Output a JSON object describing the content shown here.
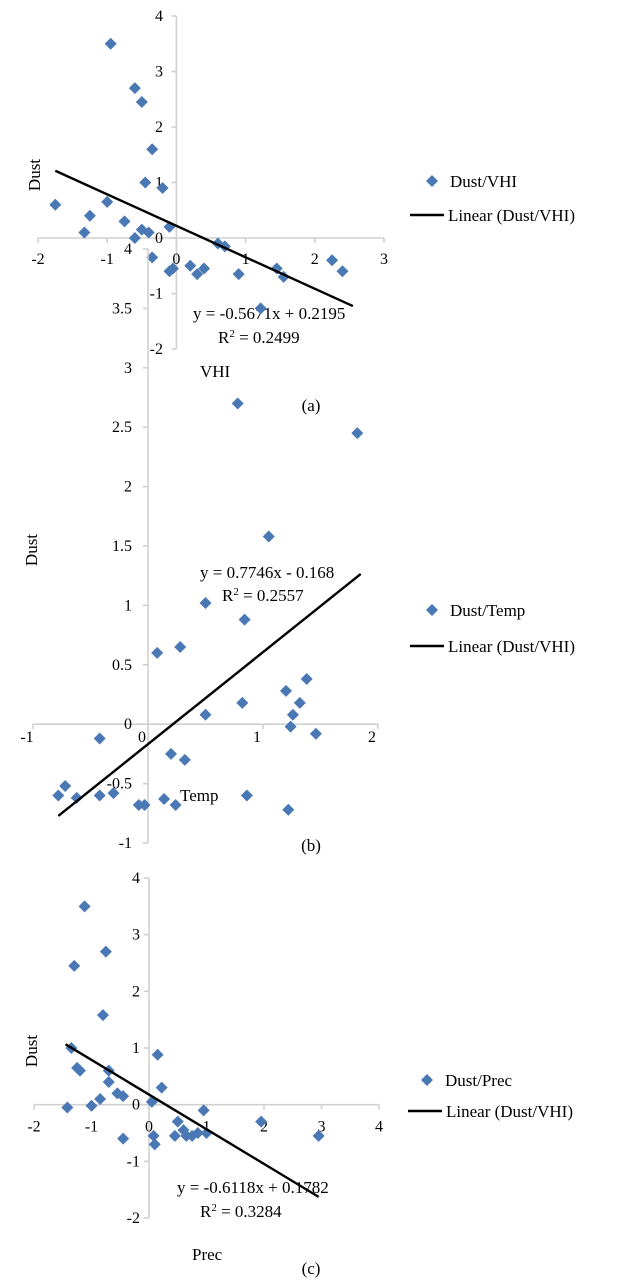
{
  "chart_data": [
    {
      "type": "scatter",
      "panel_label": "(a)",
      "xlabel": "VHI",
      "ylabel": "Dust",
      "xlim": [
        -2,
        3
      ],
      "ylim": [
        -2,
        4
      ],
      "x_ticks": [
        -2,
        -1,
        0,
        1,
        2,
        3
      ],
      "y_ticks": [
        -2,
        -1,
        0,
        1,
        2,
        3,
        4
      ],
      "x_tick_labels": [
        "-2",
        "-1",
        "0",
        "1",
        "2",
        "3"
      ],
      "y_tick_labels": [
        "-2",
        "-1",
        "0",
        "1",
        "2",
        "3",
        "4"
      ],
      "series": [
        {
          "name": "Dust/VHI",
          "points": [
            [
              -1.75,
              0.6
            ],
            [
              -1.33,
              0.1
            ],
            [
              -1.25,
              0.4
            ],
            [
              -1.0,
              0.65
            ],
            [
              -0.95,
              3.5
            ],
            [
              -0.75,
              0.3
            ],
            [
              -0.6,
              0.0
            ],
            [
              -0.6,
              2.7
            ],
            [
              -0.5,
              2.45
            ],
            [
              -0.5,
              0.15
            ],
            [
              -0.45,
              1.0
            ],
            [
              -0.4,
              0.1
            ],
            [
              -0.35,
              1.6
            ],
            [
              -0.35,
              -0.35
            ],
            [
              -0.2,
              0.9
            ],
            [
              -0.1,
              0.2
            ],
            [
              -0.1,
              -0.6
            ],
            [
              -0.05,
              -0.55
            ],
            [
              0.2,
              -0.5
            ],
            [
              0.3,
              -0.65
            ],
            [
              0.4,
              -0.55
            ],
            [
              0.9,
              -0.65
            ],
            [
              0.6,
              -0.1
            ],
            [
              0.7,
              -0.15
            ],
            [
              1.45,
              -0.55
            ],
            [
              1.55,
              -0.7
            ],
            [
              2.25,
              -0.4
            ],
            [
              2.4,
              -0.6
            ]
          ]
        }
      ],
      "trendline": {
        "name": "Linear (Dust/VHI)",
        "slope": -0.5671,
        "intercept": 0.2195,
        "x_range": [
          -1.75,
          2.55
        ]
      },
      "annotations": {
        "equation": "y = -0.5671x + 0.2195",
        "r2_prefix": "R",
        "r2_suffix": " = 0.2499"
      },
      "legend": {
        "position": "right",
        "marker_label": "Dust/VHI",
        "line_label": "Linear (Dust/VHI)"
      }
    },
    {
      "type": "scatter",
      "panel_label": "(b)",
      "xlabel": "Temp",
      "ylabel": "Dust",
      "xlim": [
        -1,
        2
      ],
      "ylim": [
        -1,
        4
      ],
      "x_ticks": [
        -1,
        0,
        1,
        2
      ],
      "y_ticks": [
        -1,
        -0.5,
        0,
        0.5,
        1,
        1.5,
        2,
        2.5,
        3,
        3.5,
        4
      ],
      "x_tick_labels": [
        "-1",
        "0",
        "1",
        "2"
      ],
      "y_tick_labels": [
        "-1",
        "-0.5",
        "0",
        "0.5",
        "1",
        "1.5",
        "2",
        "2.5",
        "3",
        "3.5",
        "4"
      ],
      "series": [
        {
          "name": "Dust/Temp",
          "points": [
            [
              -0.78,
              -0.6
            ],
            [
              -0.72,
              -0.52
            ],
            [
              -0.62,
              -0.62
            ],
            [
              -0.42,
              -0.12
            ],
            [
              -0.42,
              -0.6
            ],
            [
              -0.3,
              -0.58
            ],
            [
              -0.08,
              -0.68
            ],
            [
              -0.03,
              -0.68
            ],
            [
              0.08,
              0.6
            ],
            [
              0.14,
              -0.63
            ],
            [
              0.2,
              -0.25
            ],
            [
              0.24,
              -0.68
            ],
            [
              0.28,
              0.65
            ],
            [
              0.32,
              -0.3
            ],
            [
              0.5,
              1.02
            ],
            [
              0.5,
              0.08
            ],
            [
              0.78,
              2.7
            ],
            [
              0.82,
              0.18
            ],
            [
              0.84,
              0.88
            ],
            [
              0.86,
              -0.6
            ],
            [
              0.98,
              3.5
            ],
            [
              1.05,
              1.58
            ],
            [
              1.2,
              0.28
            ],
            [
              1.22,
              -0.72
            ],
            [
              1.24,
              -0.02
            ],
            [
              1.26,
              0.08
            ],
            [
              1.32,
              0.18
            ],
            [
              1.38,
              0.38
            ],
            [
              1.46,
              -0.08
            ],
            [
              1.82,
              2.45
            ]
          ]
        }
      ],
      "trendline": {
        "name": "Linear (Dust/VHI)",
        "slope": 0.7746,
        "intercept": -0.168,
        "x_range": [
          -0.78,
          1.85
        ]
      },
      "annotations": {
        "equation": "y = 0.7746x - 0.168",
        "r2_prefix": "R",
        "r2_suffix": " = 0.2557"
      },
      "legend": {
        "position": "right",
        "marker_label": "Dust/Temp",
        "line_label": "Linear (Dust/VHI)"
      }
    },
    {
      "type": "scatter",
      "panel_label": "(c)",
      "xlabel": "Prec",
      "ylabel": "Dust",
      "xlim": [
        -2,
        4
      ],
      "ylim": [
        -2,
        4
      ],
      "x_ticks": [
        -2,
        -1,
        0,
        1,
        2,
        3,
        4
      ],
      "y_ticks": [
        -2,
        -1,
        0,
        1,
        2,
        3,
        4
      ],
      "x_tick_labels": [
        "-2",
        "-1",
        "0",
        "1",
        "2",
        "3",
        "4"
      ],
      "y_tick_labels": [
        "-2",
        "-1",
        "0",
        "1",
        "2",
        "3",
        "4"
      ],
      "series": [
        {
          "name": "Dust/Prec",
          "points": [
            [
              -1.42,
              -0.05
            ],
            [
              -1.35,
              1.0
            ],
            [
              -1.3,
              2.45
            ],
            [
              -1.25,
              0.65
            ],
            [
              -1.2,
              0.6
            ],
            [
              -1.12,
              3.5
            ],
            [
              -1.0,
              -0.02
            ],
            [
              -0.85,
              0.1
            ],
            [
              -0.8,
              1.58
            ],
            [
              -0.75,
              2.7
            ],
            [
              -0.7,
              0.4
            ],
            [
              -0.7,
              0.6
            ],
            [
              -0.55,
              0.2
            ],
            [
              -0.45,
              0.15
            ],
            [
              -0.45,
              -0.6
            ],
            [
              0.05,
              0.05
            ],
            [
              0.08,
              -0.55
            ],
            [
              0.1,
              -0.7
            ],
            [
              0.15,
              0.88
            ],
            [
              0.22,
              0.3
            ],
            [
              0.45,
              -0.55
            ],
            [
              0.5,
              -0.3
            ],
            [
              0.6,
              -0.45
            ],
            [
              0.65,
              -0.55
            ],
            [
              0.75,
              -0.55
            ],
            [
              0.85,
              -0.5
            ],
            [
              0.95,
              -0.1
            ],
            [
              1.0,
              -0.5
            ],
            [
              1.95,
              -0.3
            ],
            [
              2.95,
              -0.55
            ]
          ]
        }
      ],
      "trendline": {
        "name": "Linear (Dust/VHI)",
        "slope": -0.6118,
        "intercept": 0.1782,
        "x_range": [
          -1.45,
          2.95
        ]
      },
      "annotations": {
        "equation": "y = -0.6118x + 0.1782",
        "r2_prefix": "R",
        "r2_suffix": " = 0.3284"
      },
      "legend": {
        "position": "right",
        "marker_label": "Dust/Prec",
        "line_label": "Linear (Dust/VHI)"
      }
    }
  ]
}
